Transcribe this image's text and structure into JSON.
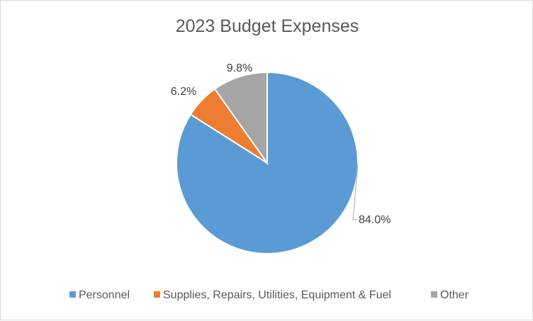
{
  "chart_data": {
    "type": "pie",
    "title": "2023 Budget Expenses",
    "categories": [
      "Personnel",
      "Supplies, Repairs, Utilities, Equipment & Fuel",
      "Other"
    ],
    "values": [
      84.0,
      6.2,
      9.8
    ],
    "data_labels": [
      "84.0%",
      "6.2%",
      "9.8%"
    ],
    "colors": [
      "#5b9bd5",
      "#ed7d31",
      "#a5a5a5"
    ],
    "legend_position": "bottom",
    "start_angle_deg": 0,
    "direction": "clockwise"
  }
}
